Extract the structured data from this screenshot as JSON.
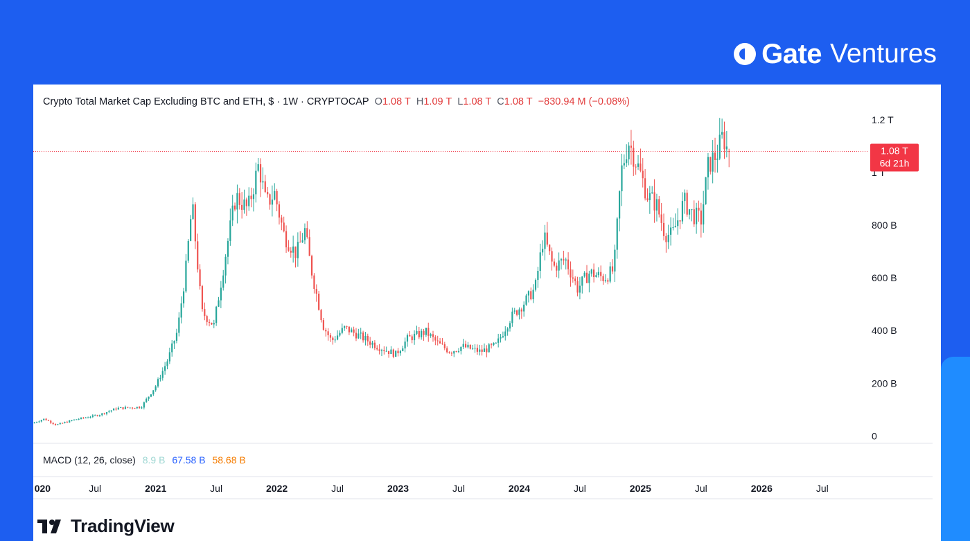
{
  "brand": {
    "name_bold": "Gate",
    "name_light": "Ventures"
  },
  "legend": {
    "title": "Crypto Total Market Cap Excluding BTC and ETH, $ · 1W · CRYPTOCAP",
    "o_label": "O",
    "o_value": "1.08 T",
    "h_label": "H",
    "h_value": "1.09 T",
    "l_label": "L",
    "l_value": "1.08 T",
    "c_label": "C",
    "c_value": "1.08 T",
    "change": "−830.94 M (−0.08%)"
  },
  "price_tag": {
    "value": "1.08 T",
    "countdown": "6d 21h",
    "level": 1080
  },
  "macd": {
    "label": "MACD (12, 26, close)",
    "v1": "8.9 B",
    "v2": "67.58 B",
    "v3": "58.68 B"
  },
  "footer": {
    "logo_text": "TradingView"
  },
  "colors": {
    "up": "#26a69a",
    "down": "#ef5350",
    "background": "#1d5ef0",
    "tag": "#f23645"
  },
  "chart_data": {
    "type": "candlestick",
    "title": "Crypto Total Market Cap Excluding BTC and ETH, $ · 1W · CRYPTOCAP",
    "y_unit": "USD (billions)",
    "ylim": [
      -20,
      1260
    ],
    "y_ticks": [
      {
        "value": 0,
        "label": "0"
      },
      {
        "value": 200,
        "label": "200 B"
      },
      {
        "value": 400,
        "label": "400 B"
      },
      {
        "value": 600,
        "label": "600 B"
      },
      {
        "value": 800,
        "label": "800 B"
      },
      {
        "value": 1000,
        "label": "1 T"
      },
      {
        "value": 1200,
        "label": "1.2 T"
      }
    ],
    "x_ticks": [
      {
        "t": 2020.0,
        "label": "020",
        "bold": true
      },
      {
        "t": 2020.5,
        "label": "Jul",
        "bold": false
      },
      {
        "t": 2021.0,
        "label": "2021",
        "bold": true
      },
      {
        "t": 2021.5,
        "label": "Jul",
        "bold": false
      },
      {
        "t": 2022.0,
        "label": "2022",
        "bold": true
      },
      {
        "t": 2022.5,
        "label": "Jul",
        "bold": false
      },
      {
        "t": 2023.0,
        "label": "2023",
        "bold": true
      },
      {
        "t": 2023.5,
        "label": "Jul",
        "bold": false
      },
      {
        "t": 2024.0,
        "label": "2024",
        "bold": true
      },
      {
        "t": 2024.5,
        "label": "Jul",
        "bold": false
      },
      {
        "t": 2025.0,
        "label": "2025",
        "bold": true
      },
      {
        "t": 2025.5,
        "label": "Jul",
        "bold": false
      },
      {
        "t": 2026.0,
        "label": "2026",
        "bold": true
      },
      {
        "t": 2026.5,
        "label": "Jul",
        "bold": false
      }
    ],
    "xlim": [
      2019.99,
      2026.85
    ],
    "series_anchors": [
      [
        2020.0,
        48
      ],
      [
        2020.1,
        65
      ],
      [
        2020.2,
        42
      ],
      [
        2020.35,
        62
      ],
      [
        2020.55,
        80
      ],
      [
        2020.7,
        105
      ],
      [
        2020.9,
        110
      ],
      [
        2021.02,
        190
      ],
      [
        2021.12,
        290
      ],
      [
        2021.2,
        400
      ],
      [
        2021.27,
        640
      ],
      [
        2021.32,
        880
      ],
      [
        2021.4,
        470
      ],
      [
        2021.5,
        420
      ],
      [
        2021.6,
        700
      ],
      [
        2021.68,
        910
      ],
      [
        2021.78,
        860
      ],
      [
        2021.87,
        1030
      ],
      [
        2021.93,
        880
      ],
      [
        2022.0,
        920
      ],
      [
        2022.08,
        760
      ],
      [
        2022.18,
        690
      ],
      [
        2022.25,
        780
      ],
      [
        2022.3,
        640
      ],
      [
        2022.4,
        420
      ],
      [
        2022.47,
        360
      ],
      [
        2022.58,
        410
      ],
      [
        2022.7,
        380
      ],
      [
        2022.85,
        340
      ],
      [
        2023.0,
        310
      ],
      [
        2023.1,
        370
      ],
      [
        2023.25,
        395
      ],
      [
        2023.35,
        350
      ],
      [
        2023.45,
        320
      ],
      [
        2023.55,
        340
      ],
      [
        2023.7,
        320
      ],
      [
        2023.83,
        345
      ],
      [
        2023.95,
        450
      ],
      [
        2024.05,
        500
      ],
      [
        2024.15,
        560
      ],
      [
        2024.22,
        760
      ],
      [
        2024.3,
        640
      ],
      [
        2024.4,
        670
      ],
      [
        2024.5,
        560
      ],
      [
        2024.6,
        620
      ],
      [
        2024.72,
        600
      ],
      [
        2024.8,
        630
      ],
      [
        2024.86,
        1000
      ],
      [
        2024.92,
        1120
      ],
      [
        2025.0,
        1020
      ],
      [
        2025.08,
        910
      ],
      [
        2025.15,
        880
      ],
      [
        2025.22,
        770
      ],
      [
        2025.28,
        760
      ],
      [
        2025.38,
        890
      ],
      [
        2025.45,
        840
      ],
      [
        2025.52,
        820
      ],
      [
        2025.58,
        1030
      ],
      [
        2025.65,
        1070
      ],
      [
        2025.7,
        1140
      ],
      [
        2025.74,
        1080
      ]
    ],
    "series": [
      {
        "name": "Crypto Total Market Cap Excluding BTC and ETH",
        "values_note": "weekly OHLC candles approximated from anchors above"
      }
    ]
  }
}
